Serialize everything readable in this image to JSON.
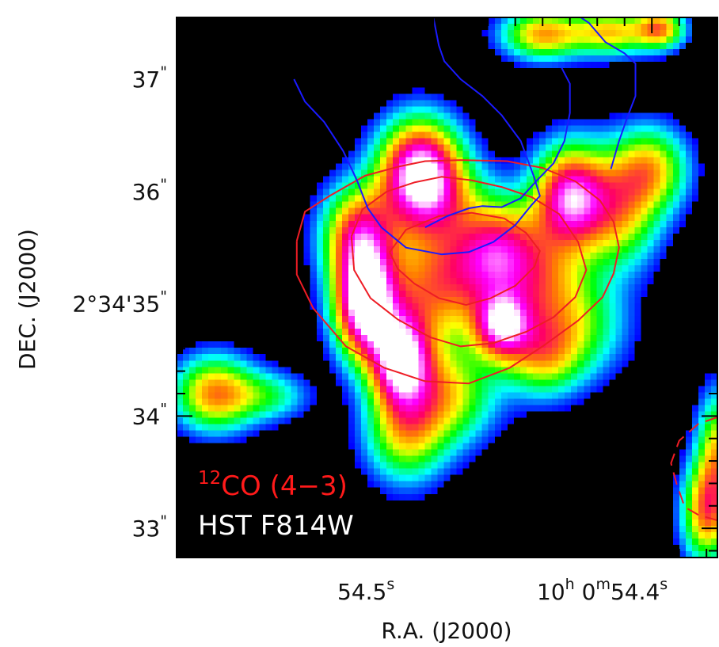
{
  "chart_data": {
    "type": "heatmap",
    "xlabel": "R.A. (J2000)",
    "ylabel": "DEC. (J2000)",
    "x_ticks": [
      {
        "value": 54.5,
        "main": "54.5",
        "sup": "s"
      },
      {
        "value": 54.4,
        "main": "10",
        "sup": "h",
        "main2": " 0",
        "sup2": "m",
        "main3": "54.4",
        "sup3": "s"
      }
    ],
    "y_ticks": [
      {
        "value": 37,
        "main": "37",
        "sup": "\""
      },
      {
        "value": 36,
        "main": "36",
        "sup": "\""
      },
      {
        "value": 35,
        "main": "2°34'35",
        "sup": "\""
      },
      {
        "value": 34,
        "main": "34",
        "sup": "\""
      },
      {
        "value": 33,
        "main": "33",
        "sup": "\""
      }
    ],
    "x_range": [
      54.574,
      54.376
    ],
    "y_range": [
      32.74,
      37.55
    ],
    "background_color": "#000000",
    "colormap": [
      "#000000",
      "#0000ff",
      "#00ffff",
      "#00ff00",
      "#ffff00",
      "#ff8000",
      "#ff0066",
      "#ff00ff",
      "#ffffff"
    ],
    "series": [
      {
        "name": "12CO (4-3)",
        "label_main": "CO (4−3)",
        "label_sup": "12",
        "kind": "contours",
        "color": "#ee1c25",
        "contours": [
          [
            [
              54.53,
              35.56
            ],
            [
              54.527,
              35.82
            ],
            [
              54.518,
              35.96
            ],
            [
              54.505,
              36.14
            ],
            [
              54.493,
              36.22
            ],
            [
              54.483,
              36.27
            ],
            [
              54.47,
              36.28
            ],
            [
              54.453,
              36.27
            ],
            [
              54.44,
              36.21
            ],
            [
              54.428,
              36.09
            ],
            [
              54.419,
              35.92
            ],
            [
              54.414,
              35.73
            ],
            [
              54.412,
              35.5
            ],
            [
              54.414,
              35.27
            ],
            [
              54.418,
              35.06
            ],
            [
              54.427,
              34.85
            ],
            [
              54.44,
              34.62
            ],
            [
              54.452,
              34.43
            ],
            [
              54.467,
              34.29
            ],
            [
              54.483,
              34.31
            ],
            [
              54.498,
              34.43
            ],
            [
              54.512,
              34.62
            ],
            [
              54.524,
              34.96
            ],
            [
              54.53,
              35.26
            ],
            [
              54.53,
              35.56
            ]
          ],
          [
            [
              54.51,
              35.6
            ],
            [
              54.506,
              35.84
            ],
            [
              54.497,
              36.0
            ],
            [
              54.487,
              36.08
            ],
            [
              54.477,
              36.13
            ],
            [
              54.466,
              36.1
            ],
            [
              54.455,
              36.04
            ],
            [
              54.444,
              35.95
            ],
            [
              54.434,
              35.8
            ],
            [
              54.427,
              35.55
            ],
            [
              54.424,
              35.3
            ],
            [
              54.428,
              35.06
            ],
            [
              54.436,
              34.88
            ],
            [
              54.446,
              34.75
            ],
            [
              54.458,
              34.65
            ],
            [
              54.47,
              34.62
            ],
            [
              54.481,
              34.7
            ],
            [
              54.493,
              34.86
            ],
            [
              54.503,
              35.05
            ],
            [
              54.509,
              35.3
            ],
            [
              54.51,
              35.6
            ]
          ],
          [
            [
              54.496,
              35.46
            ],
            [
              54.49,
              35.66
            ],
            [
              54.478,
              35.78
            ],
            [
              54.466,
              35.81
            ],
            [
              54.454,
              35.76
            ],
            [
              54.446,
              35.63
            ],
            [
              54.441,
              35.47
            ],
            [
              54.443,
              35.33
            ],
            [
              54.45,
              35.16
            ],
            [
              54.459,
              35.05
            ],
            [
              54.468,
              34.99
            ],
            [
              54.478,
              35.05
            ],
            [
              54.487,
              35.18
            ],
            [
              54.493,
              35.31
            ],
            [
              54.496,
              35.46
            ]
          ]
        ]
      },
      {
        "name": "HST F814W",
        "kind": "image",
        "color": "#ffffff",
        "sources": [
          {
            "ra": 54.56,
            "dec": 34.2,
            "amp": 0.58,
            "sx": 0.01,
            "sy": 0.22
          },
          {
            "ra": 54.54,
            "dec": 34.18,
            "amp": 0.25,
            "sx": 0.01,
            "sy": 0.15
          },
          {
            "ra": 54.505,
            "dec": 35.0,
            "amp": 1.1,
            "sx": 0.0075,
            "sy": 0.32
          },
          {
            "ra": 54.492,
            "dec": 34.5,
            "amp": 0.95,
            "sx": 0.0075,
            "sy": 0.28
          },
          {
            "ra": 54.507,
            "dec": 35.6,
            "amp": 0.7,
            "sx": 0.009,
            "sy": 0.3
          },
          {
            "ra": 54.485,
            "dec": 36.2,
            "amp": 0.9,
            "sx": 0.01,
            "sy": 0.3
          },
          {
            "ra": 54.48,
            "dec": 35.9,
            "amp": 0.4,
            "sx": 0.012,
            "sy": 0.3
          },
          {
            "ra": 54.483,
            "dec": 35.1,
            "amp": 0.45,
            "sx": 0.012,
            "sy": 0.35
          },
          {
            "ra": 54.465,
            "dec": 35.3,
            "amp": 0.4,
            "sx": 0.012,
            "sy": 0.35
          },
          {
            "ra": 54.455,
            "dec": 34.8,
            "amp": 0.75,
            "sx": 0.007,
            "sy": 0.2
          },
          {
            "ra": 54.455,
            "dec": 35.5,
            "amp": 0.45,
            "sx": 0.01,
            "sy": 0.3
          },
          {
            "ra": 54.44,
            "dec": 35.2,
            "amp": 0.45,
            "sx": 0.012,
            "sy": 0.35
          },
          {
            "ra": 54.43,
            "dec": 35.95,
            "amp": 0.85,
            "sx": 0.009,
            "sy": 0.3
          },
          {
            "ra": 54.412,
            "dec": 35.85,
            "amp": 0.5,
            "sx": 0.01,
            "sy": 0.35
          },
          {
            "ra": 54.4,
            "dec": 36.2,
            "amp": 0.45,
            "sx": 0.009,
            "sy": 0.25
          },
          {
            "ra": 54.475,
            "dec": 34.2,
            "amp": 0.45,
            "sx": 0.012,
            "sy": 0.3
          },
          {
            "ra": 54.49,
            "dec": 33.85,
            "amp": 0.45,
            "sx": 0.01,
            "sy": 0.3
          },
          {
            "ra": 54.44,
            "dec": 34.55,
            "amp": 0.45,
            "sx": 0.01,
            "sy": 0.25
          },
          {
            "ra": 54.425,
            "dec": 34.8,
            "amp": 0.25,
            "sx": 0.012,
            "sy": 0.3
          },
          {
            "ra": 54.44,
            "dec": 37.4,
            "amp": 0.55,
            "sx": 0.01,
            "sy": 0.15
          },
          {
            "ra": 54.415,
            "dec": 37.42,
            "amp": 0.5,
            "sx": 0.01,
            "sy": 0.14
          },
          {
            "ra": 54.397,
            "dec": 37.45,
            "amp": 0.55,
            "sx": 0.006,
            "sy": 0.12
          },
          {
            "ra": 54.38,
            "dec": 33.15,
            "amp": 0.6,
            "sx": 0.006,
            "sy": 0.3
          },
          {
            "ra": 54.376,
            "dec": 33.7,
            "amp": 0.45,
            "sx": 0.005,
            "sy": 0.35
          }
        ]
      },
      {
        "kind": "contours",
        "color": "#1a1aff",
        "contours": [
          [
            [
              54.48,
              37.55
            ],
            [
              54.478,
              37.3
            ],
            [
              54.476,
              37.16
            ],
            [
              54.47,
              37.0
            ],
            [
              54.462,
              36.85
            ],
            [
              54.455,
              36.68
            ],
            [
              54.448,
              36.45
            ],
            [
              54.443,
              36.12
            ],
            [
              54.441,
              35.96
            ],
            [
              54.444,
              35.88
            ],
            [
              54.45,
              35.7
            ],
            [
              54.458,
              35.55
            ],
            [
              54.467,
              35.46
            ],
            [
              54.477,
              35.44
            ],
            [
              54.49,
              35.5
            ],
            [
              54.499,
              35.68
            ],
            [
              54.504,
              35.85
            ],
            [
              54.508,
              36.1
            ],
            [
              54.513,
              36.36
            ],
            [
              54.52,
              36.62
            ],
            [
              54.527,
              36.8
            ],
            [
              54.531,
              37.0
            ]
          ],
          [
            [
              54.483,
              35.68
            ],
            [
              54.475,
              35.78
            ],
            [
              54.467,
              35.85
            ],
            [
              54.462,
              35.87
            ],
            [
              54.455,
              35.86
            ],
            [
              54.448,
              35.94
            ],
            [
              54.442,
              36.1
            ],
            [
              54.436,
              36.25
            ],
            [
              54.432,
              36.45
            ],
            [
              54.43,
              36.7
            ],
            [
              54.43,
              36.96
            ],
            [
              54.433,
              37.1
            ]
          ],
          [
            [
              54.415,
              36.2
            ],
            [
              54.412,
              36.45
            ],
            [
              54.409,
              36.66
            ],
            [
              54.406,
              36.85
            ],
            [
              54.406,
              37.14
            ],
            [
              54.41,
              37.23
            ],
            [
              54.417,
              37.33
            ],
            [
              54.423,
              37.5
            ],
            [
              54.426,
              37.55
            ]
          ]
        ]
      },
      {
        "kind": "contours-dashed",
        "color": "#ee1c25",
        "contours": [
          [
            [
              54.376,
              33.99
            ],
            [
              54.383,
              33.93
            ],
            [
              54.39,
              33.78
            ],
            [
              54.393,
              33.58
            ],
            [
              54.391,
              33.4
            ],
            [
              54.388,
              33.19
            ],
            [
              54.383,
              33.12
            ],
            [
              54.376,
              33.07
            ]
          ]
        ]
      }
    ]
  }
}
